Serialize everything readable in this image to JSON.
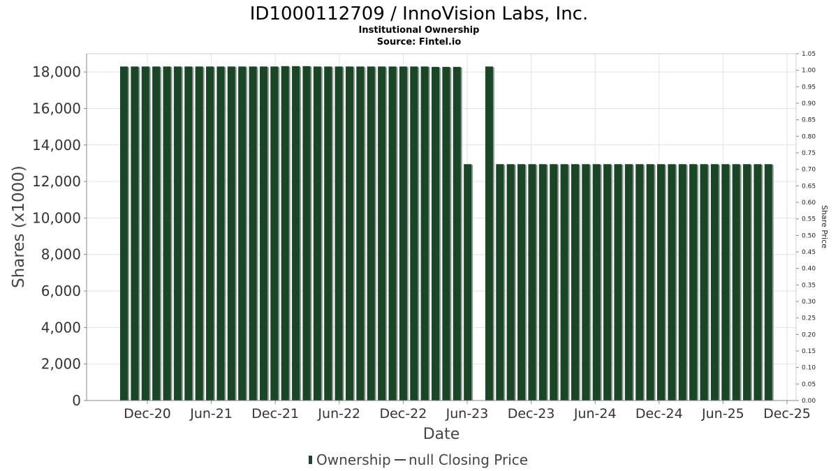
{
  "header": {
    "title": "ID1000112709 / InnoVision Labs, Inc.",
    "subtitle": "Institutional Ownership",
    "source": "Source: Fintel.io"
  },
  "legend": {
    "ownership_label": "Ownership",
    "price_label": "null Closing Price"
  },
  "colors": {
    "bar_fill": "#1a4527",
    "bar_shadow": "#8c9a8f",
    "grid": "#e2e2e2",
    "axis": "#888888"
  },
  "chart_data": {
    "type": "bar",
    "xlabel": "Date",
    "ylabel": "Shares (x1000)",
    "y2label": "Share Price",
    "ylim": [
      0,
      19000
    ],
    "y_ticks": [
      0,
      2000,
      4000,
      6000,
      8000,
      10000,
      12000,
      14000,
      16000,
      18000
    ],
    "y_tick_labels": [
      "0",
      "2,000",
      "4,000",
      "6,000",
      "8,000",
      "10,000",
      "12,000",
      "14,000",
      "16,000",
      "18,000"
    ],
    "y2lim": [
      0,
      1.05
    ],
    "y2_tick_labels": [
      "0.00",
      "0.05",
      "0.10",
      "0.15",
      "0.20",
      "0.25",
      "0.30",
      "0.35",
      "0.40",
      "0.45",
      "0.50",
      "0.55",
      "0.60",
      "0.65",
      "0.70",
      "0.75",
      "0.80",
      "0.85",
      "0.90",
      "0.95",
      "1.00",
      "1.05"
    ],
    "x_tick_labels": [
      "Dec-20",
      "Jun-21",
      "Dec-21",
      "Jun-22",
      "Dec-22",
      "Jun-23",
      "Dec-23",
      "Jun-24",
      "Dec-24",
      "Jun-25",
      "Dec-25"
    ],
    "grid": true,
    "legend_position": "bottom",
    "series": [
      {
        "name": "Ownership",
        "values": [
          18300,
          18300,
          18300,
          18300,
          18300,
          18300,
          18300,
          18300,
          18300,
          18300,
          18300,
          18300,
          18300,
          18300,
          18300,
          18320,
          18320,
          18320,
          18300,
          18300,
          18300,
          18300,
          18300,
          18300,
          18300,
          18300,
          18300,
          18300,
          18300,
          18280,
          18280,
          18280,
          12950,
          null,
          18300,
          12950,
          12950,
          12950,
          12950,
          12950,
          12950,
          12950,
          12950,
          12950,
          12950,
          12950,
          12950,
          12950,
          12950,
          12950,
          12950,
          12950,
          12950,
          12950,
          12950,
          12950,
          12950,
          12950,
          12950,
          12950,
          12950
        ]
      }
    ]
  }
}
